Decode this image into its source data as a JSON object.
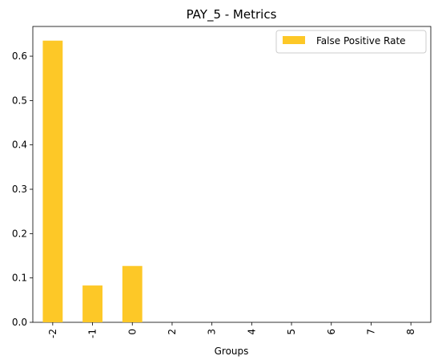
{
  "chart_data": {
    "type": "bar",
    "title": "PAY_5 - Metrics",
    "xlabel": "Groups",
    "ylabel": "",
    "categories": [
      "-2",
      "-1",
      "0",
      "2",
      "3",
      "4",
      "5",
      "6",
      "7",
      "8"
    ],
    "series": [
      {
        "name": "False Positive Rate",
        "values": [
          0.635,
          0.083,
          0.127,
          0,
          0,
          0,
          0,
          0,
          0,
          0
        ],
        "color": "#fdc827"
      }
    ],
    "yticks": [
      "0.0",
      "0.1",
      "0.2",
      "0.3",
      "0.4",
      "0.5",
      "0.6"
    ],
    "ylim": [
      0,
      0.667
    ],
    "grid": false,
    "legend_position": "top-right"
  }
}
